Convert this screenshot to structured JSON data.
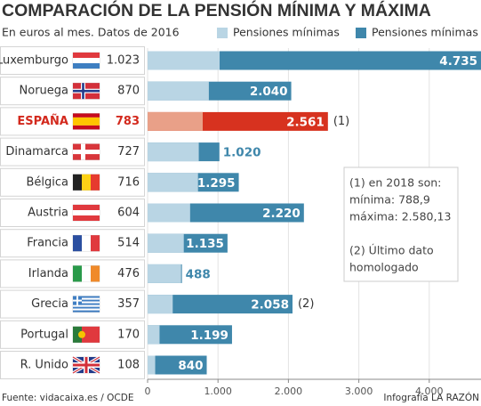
{
  "chart_data": {
    "type": "overlap-bar",
    "title": "COMPARACIÓN DE LA PENSIÓN MÍNIMA Y MÁXIMA",
    "subtitle": "En euros al mes. Datos de 2016",
    "categories": [
      "Luxemburgo",
      "Noruega",
      "ESPAÑA",
      "Dinamarca",
      "Bélgica",
      "Austria",
      "Francia",
      "Irlanda",
      "Grecia",
      "Portugal",
      "R. Unido"
    ],
    "series": [
      {
        "name": "Pensiones mínimas",
        "color": "#b9d5e4",
        "values": [
          1023,
          870,
          783,
          727,
          716,
          604,
          514,
          476,
          357,
          170,
          108
        ],
        "value_labels": [
          "1.023",
          "870",
          "783",
          "727",
          "716",
          "604",
          "514",
          "476",
          "357",
          "170",
          "108"
        ]
      },
      {
        "name": "Pensiones mínimas",
        "color": "#3f87ab",
        "values": [
          4735,
          2040,
          2561,
          1020,
          1295,
          2220,
          1135,
          488,
          2058,
          1199,
          840
        ],
        "value_labels": [
          "4.735",
          "2.040",
          "2.561",
          "1.020",
          "1.295",
          "2.220",
          "1.135",
          "488",
          "2.058",
          "1.199",
          "840"
        ]
      }
    ],
    "highlight": {
      "category": "ESPAÑA",
      "colors": [
        "#e9a088",
        "#d7321f"
      ],
      "text_color": "#d3291d"
    },
    "notes": [
      {
        "category": "ESPAÑA",
        "label": "(1)"
      },
      {
        "category": "Grecia",
        "label": "(2)"
      }
    ],
    "annotation": [
      [
        "(1) en 2018 son:",
        "mínima: 788,9",
        "máxima: 2.580,13"
      ],
      [
        "(2) Último dato",
        "homologado"
      ]
    ],
    "xlim": [
      0,
      4735
    ],
    "xticks": [
      0,
      {
        "value": 1000,
        "label": "1.000"
      },
      {
        "value": 2000,
        "label": "2.000"
      },
      {
        "value": 3000,
        "label": "3.000"
      },
      {
        "value": 4000,
        "label": "4.000"
      }
    ],
    "source": "Fuente: vidacaixa.es / OCDE",
    "credit": "Infografía LA RAZÓN"
  }
}
